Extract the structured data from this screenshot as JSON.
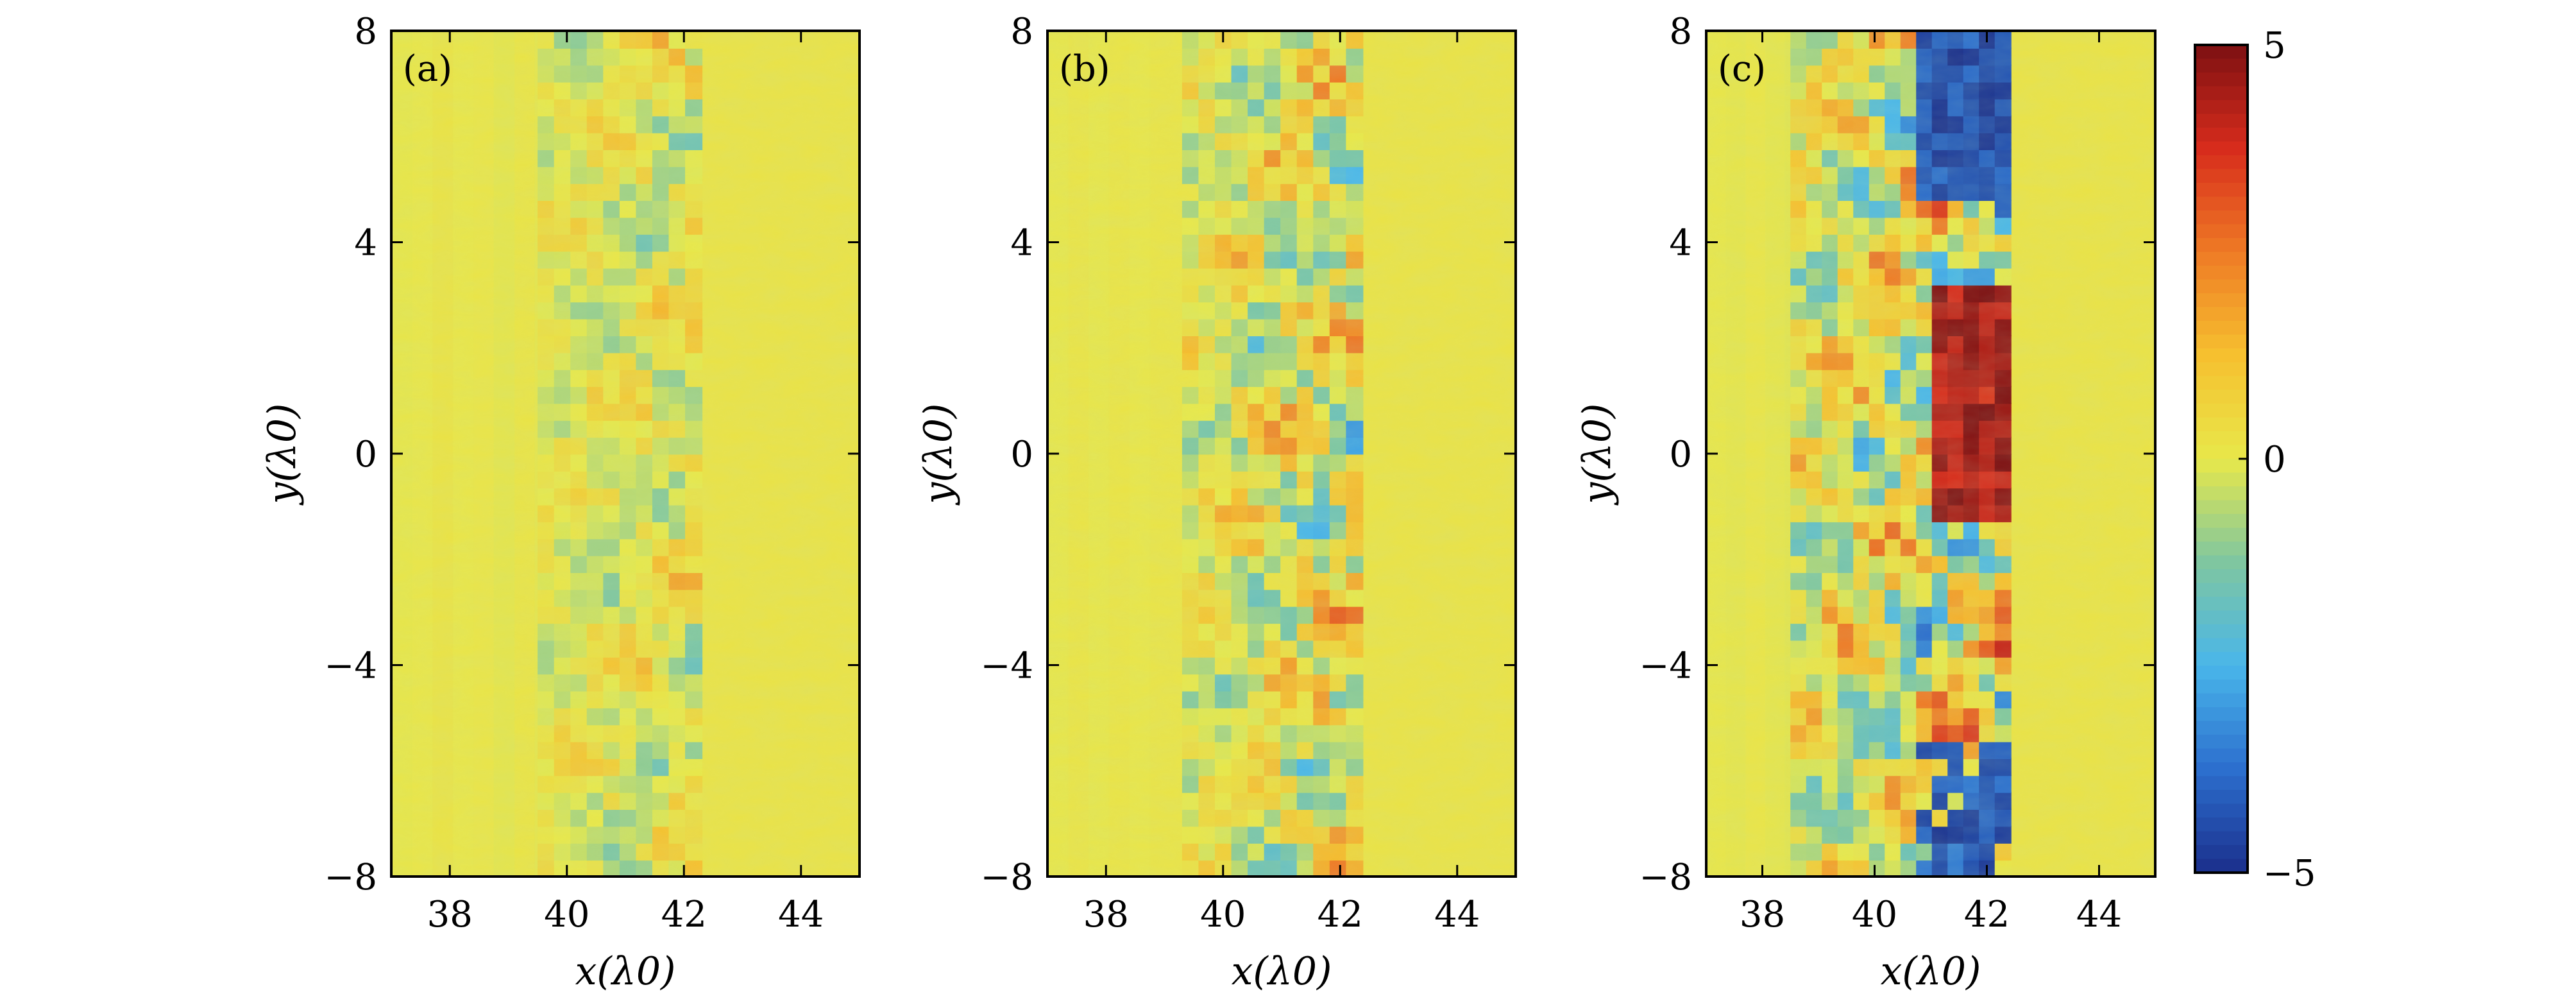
{
  "chart_data": [
    {
      "type": "heatmap",
      "panel_label": "(a)",
      "xlabel": "x(λ0)",
      "ylabel": "y(λ0)",
      "xlim": [
        37,
        45
      ],
      "ylim": [
        -8,
        8
      ],
      "x_ticks": [
        38,
        40,
        42,
        44
      ],
      "y_ticks": [
        -8,
        -4,
        0,
        4,
        8
      ],
      "x_tick_labels": [
        "38",
        "40",
        "42",
        "44"
      ],
      "y_tick_labels": [
        "−8",
        "−4",
        "0",
        "4",
        "8"
      ],
      "features": {
        "background_value": 0.2,
        "perturbed_band_x": [
          39.5,
          42.1
        ],
        "max_abs_value": 2.2
      }
    },
    {
      "type": "heatmap",
      "panel_label": "(b)",
      "xlabel": "x(λ0)",
      "ylabel": "y(λ0)",
      "xlim": [
        37,
        45
      ],
      "ylim": [
        -8,
        8
      ],
      "x_ticks": [
        38,
        40,
        42,
        44
      ],
      "y_ticks": [
        -8,
        -4,
        0,
        4,
        8
      ],
      "x_tick_labels": [
        "38",
        "40",
        "42",
        "44"
      ],
      "y_tick_labels": [
        "−8",
        "−4",
        "0",
        "4",
        "8"
      ],
      "features": {
        "background_value": 0.2,
        "perturbed_band_x": [
          39.3,
          42.3
        ],
        "max_abs_value": 3.5
      }
    },
    {
      "type": "heatmap",
      "panel_label": "(c)",
      "xlabel": "x(λ0)",
      "ylabel": "y(λ0)",
      "xlim": [
        37,
        45
      ],
      "ylim": [
        -8,
        8
      ],
      "x_ticks": [
        38,
        40,
        42,
        44
      ],
      "y_ticks": [
        -8,
        -4,
        0,
        4,
        8
      ],
      "x_tick_labels": [
        "38",
        "40",
        "42",
        "44"
      ],
      "y_tick_labels": [
        "−8",
        "−4",
        "0",
        "4",
        "8"
      ],
      "features": {
        "background_value": 0.2,
        "perturbed_band_x": [
          38.5,
          42.4
        ],
        "max_abs_value": 5
      }
    }
  ],
  "colorbar": {
    "min": -5,
    "max": 5,
    "ticks": [
      5,
      0,
      -5
    ],
    "tick_labels": [
      "5",
      "0",
      "−5"
    ],
    "colors": [
      "#1b2f8c",
      "#2c6fce",
      "#49b6ea",
      "#7fc6a0",
      "#e8e84a",
      "#f6c02f",
      "#ef7a25",
      "#d72c1c",
      "#7d1012"
    ]
  }
}
